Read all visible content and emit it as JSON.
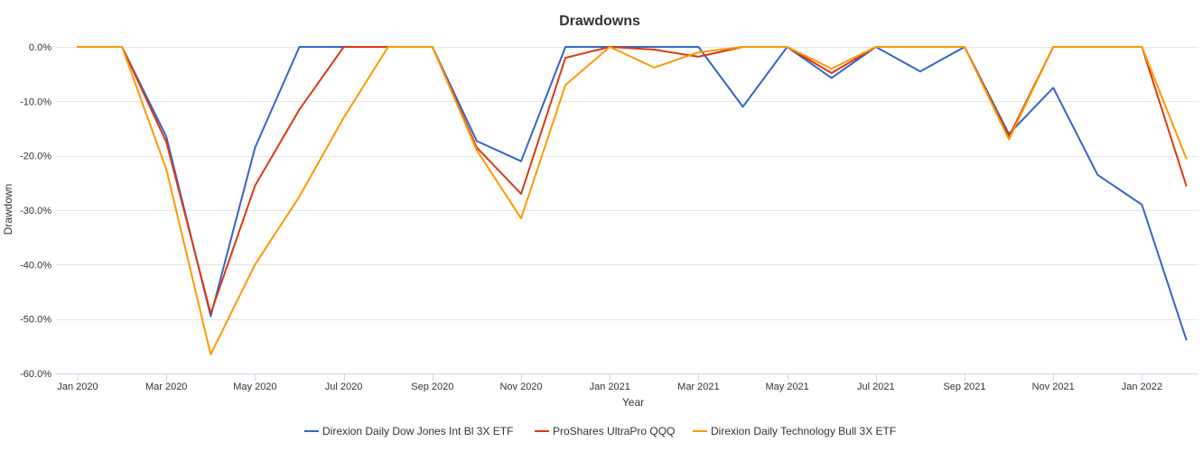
{
  "chart_data": {
    "type": "line",
    "title": "Drawdowns",
    "xlabel": "Year",
    "ylabel": "Drawdown",
    "ylim": [
      -60,
      0
    ],
    "yticks": [
      0,
      -10,
      -20,
      -30,
      -40,
      -50,
      -60
    ],
    "ytick_labels": [
      "0.0%",
      "-10.0%",
      "-20.0%",
      "-30.0%",
      "-40.0%",
      "-50.0%",
      "-60.0%"
    ],
    "x": [
      "Jan 2020",
      "Feb 2020",
      "Mar 2020",
      "Apr 2020",
      "May 2020",
      "Jun 2020",
      "Jul 2020",
      "Aug 2020",
      "Sep 2020",
      "Oct 2020",
      "Nov 2020",
      "Dec 2020",
      "Jan 2021",
      "Feb 2021",
      "Mar 2021",
      "Apr 2021",
      "May 2021",
      "Jun 2021",
      "Jul 2021",
      "Aug 2021",
      "Sep 2021",
      "Oct 2021",
      "Nov 2021",
      "Dec 2021",
      "Jan 2022",
      "Feb 2022"
    ],
    "xtick_labels": [
      "Jan 2020",
      "Mar 2020",
      "May 2020",
      "Jul 2020",
      "Sep 2020",
      "Nov 2020",
      "Jan 2021",
      "Mar 2021",
      "May 2021",
      "Jul 2021",
      "Sep 2021",
      "Nov 2021",
      "Jan 2022"
    ],
    "xtick_index": [
      0,
      2,
      4,
      6,
      8,
      10,
      12,
      14,
      16,
      18,
      20,
      22,
      24
    ],
    "series": [
      {
        "name": "Direxion Daily Dow Jones Int Bl 3X ETF",
        "color": "#3366cc",
        "values": [
          0,
          0,
          -16.5,
          -49.5,
          -18.5,
          0,
          0,
          0,
          0,
          -17.3,
          -21,
          0,
          0,
          0,
          0,
          -11,
          0,
          -5.7,
          0,
          -4.5,
          0,
          -16,
          -7.5,
          -23.5,
          -29,
          -53.8
        ]
      },
      {
        "name": "ProShares UltraPro QQQ",
        "color": "#dc3912",
        "values": [
          0,
          0,
          -17.5,
          -49,
          -25.5,
          -11.5,
          0,
          0,
          0,
          -18.5,
          -27,
          -2,
          0,
          -0.5,
          -1.8,
          0,
          0,
          -4.8,
          0,
          0,
          0,
          -16.5,
          0,
          0,
          0,
          -25.5
        ]
      },
      {
        "name": "Direxion Daily Technology Bull 3X ETF",
        "color": "#ff9900",
        "values": [
          0,
          0,
          -22.5,
          -56.5,
          -40,
          -27.5,
          -13,
          0,
          0,
          -19,
          -31.5,
          -7,
          0,
          -3.8,
          -1,
          0,
          0,
          -4,
          0,
          0,
          0,
          -17,
          0,
          0,
          0,
          -20.5
        ]
      }
    ]
  }
}
